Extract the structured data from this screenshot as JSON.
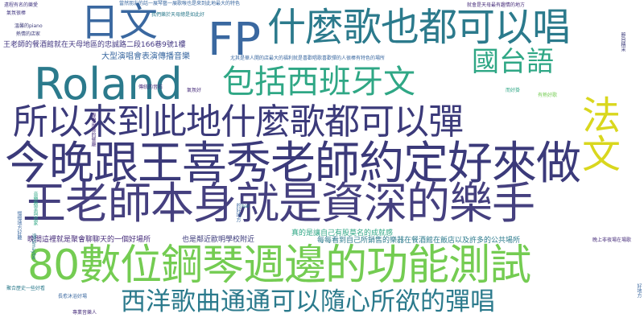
{
  "palette": {
    "navy": "#3b3a7a",
    "indigo": "#45407f",
    "teal": "#2b7a8c",
    "blue": "#3a68a0",
    "green": "#2fa785",
    "lime": "#74cc52",
    "yellow": "#d9d71e",
    "purple": "#472d7b",
    "violet": "#443983"
  },
  "words": [
    {
      "text": "今晚跟王喜秀老師約定好來做",
      "weight": 100
    },
    {
      "text": "王老師本身就是資深的樂手",
      "weight": 92
    },
    {
      "text": "80數位鋼琴週邊的功能測試",
      "weight": 88
    },
    {
      "text": "所以來到此地什麼歌都可以彈",
      "weight": 76
    },
    {
      "text": "Roland",
      "weight": 74
    },
    {
      "text": "什麼歌也都可以唱",
      "weight": 72
    },
    {
      "text": "包括西班牙文",
      "weight": 62
    },
    {
      "text": "日文",
      "weight": 64
    },
    {
      "text": "FP",
      "weight": 66
    },
    {
      "text": "法文",
      "weight": 62
    },
    {
      "text": "國台語",
      "weight": 52
    },
    {
      "text": "西洋歌曲通通可以隨心所欲的彈唱",
      "weight": 50
    },
    {
      "text": "王老師的餐酒館就在天母地區的忠誠路二段166巷9號1樓",
      "weight": 14
    },
    {
      "text": "大型演唱會表演傳播音樂",
      "weight": 14
    },
    {
      "text": "晚間這裡就是聚會聊聊天的一個好場所",
      "weight": 14
    },
    {
      "text": "也是鄰近歐明學校附近",
      "weight": 14
    },
    {
      "text": "真的是讓自己有股莫名的成就感",
      "weight": 14
    },
    {
      "text": "每每看到自己所銷售的樂器在餐酒館在飯店以及許多的公共場所",
      "weight": 14
    },
    {
      "text": "尤其是華人開的店最大的福利就是喜歡唱歌喜歡彈的人很棒有特色的場所",
      "weight": 12
    },
    {
      "text": "當然朋友的話一展琴藝一展歌喉也是來到此地最大的特色",
      "weight": 12
    },
    {
      "text": "就會是天母最有趣情的地方",
      "weight": 12
    },
    {
      "text": "我們樂於天母總是如此好",
      "weight": 12
    },
    {
      "text": "遠程有名的樂愛",
      "weight": 12
    },
    {
      "text": "氣氛很棒",
      "weight": 12
    },
    {
      "text": "溫馨的piano",
      "weight": 12
    },
    {
      "text": "熱情的店家",
      "weight": 12
    },
    {
      "text": "傳統的音石",
      "weight": 12
    },
    {
      "text": "氣氛好",
      "weight": 12
    },
    {
      "text": "而好掛",
      "weight": 12
    },
    {
      "text": "有熱好歌",
      "weight": 12
    },
    {
      "text": "晚上非夜場在場歌",
      "weight": 12
    },
    {
      "text": "聚合歷史一些好看",
      "weight": 12
    },
    {
      "text": "長愈沐浴好場",
      "weight": 12
    },
    {
      "text": "專業音樂人",
      "weight": 12
    },
    {
      "text": "bar",
      "weight": 12
    },
    {
      "text": "音樂教室與店家",
      "weight": 12
    },
    {
      "text": "專場用餐的餐廳",
      "weight": 12
    },
    {
      "text": "慢慢地方好聽",
      "weight": 12
    },
    {
      "text": "好地方",
      "weight": 12
    },
    {
      "text": "遠近maybe",
      "weight": 12
    },
    {
      "text": "節目精采",
      "weight": 12
    },
    {
      "text": "的好地方",
      "weight": 12
    }
  ]
}
